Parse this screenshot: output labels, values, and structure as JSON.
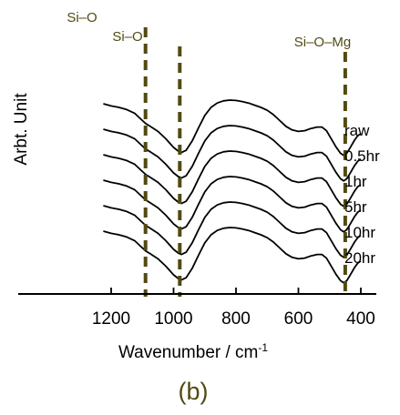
{
  "chart_data": {
    "type": "line",
    "title": "",
    "xlabel": "Wavenumber / cm",
    "xlabel_superscript": "-1",
    "ylabel": "Arbt. Unit",
    "xlim": [
      1200,
      400
    ],
    "x_reversed": true,
    "y_ticks_shown": false,
    "x_ticks": [
      1200,
      1000,
      800,
      600,
      400
    ],
    "grid": false,
    "panel_label": "(b)",
    "colors": {
      "line": "#000000",
      "annotation": "#524a12",
      "panel_label": "#524a12"
    },
    "annotations": [
      {
        "label": "Si–O",
        "x": 1090
      },
      {
        "label": "Si–O",
        "x": 980
      },
      {
        "label": "Si–O–Mg",
        "x": 450
      }
    ],
    "series": [
      {
        "name": "raw",
        "offset": 5,
        "x": [
          1225,
          1200,
          1175,
          1150,
          1125,
          1100,
          1090,
          1075,
          1050,
          1025,
          1000,
          985,
          975,
          960,
          940,
          920,
          900,
          880,
          860,
          840,
          820,
          800,
          780,
          760,
          740,
          720,
          700,
          680,
          660,
          640,
          620,
          600,
          580,
          560,
          540,
          525,
          510,
          495,
          480,
          465,
          455,
          445,
          435,
          420,
          410,
          400
        ],
        "y": [
          0.95,
          0.92,
          0.9,
          0.87,
          0.82,
          0.72,
          0.68,
          0.64,
          0.57,
          0.47,
          0.35,
          0.3,
          0.28,
          0.31,
          0.44,
          0.62,
          0.79,
          0.9,
          0.96,
          0.99,
          1.0,
          0.995,
          0.98,
          0.96,
          0.93,
          0.9,
          0.86,
          0.8,
          0.72,
          0.64,
          0.59,
          0.57,
          0.58,
          0.61,
          0.63,
          0.63,
          0.58,
          0.47,
          0.36,
          0.27,
          0.24,
          0.27,
          0.34,
          0.45,
          0.51,
          0.54
        ]
      },
      {
        "name": "0.5hr",
        "offset": 4,
        "x": [
          1225,
          1200,
          1175,
          1150,
          1125,
          1100,
          1090,
          1075,
          1050,
          1025,
          1000,
          985,
          975,
          960,
          940,
          920,
          900,
          880,
          860,
          840,
          820,
          800,
          780,
          760,
          740,
          720,
          700,
          680,
          660,
          640,
          620,
          600,
          580,
          560,
          540,
          525,
          510,
          495,
          480,
          465,
          455,
          445,
          435,
          420,
          410,
          400
        ],
        "y": [
          0.95,
          0.92,
          0.9,
          0.87,
          0.82,
          0.72,
          0.68,
          0.64,
          0.57,
          0.47,
          0.35,
          0.3,
          0.28,
          0.31,
          0.44,
          0.62,
          0.79,
          0.9,
          0.96,
          0.99,
          1.0,
          0.995,
          0.98,
          0.96,
          0.93,
          0.9,
          0.86,
          0.8,
          0.72,
          0.64,
          0.59,
          0.57,
          0.58,
          0.61,
          0.63,
          0.63,
          0.58,
          0.47,
          0.36,
          0.27,
          0.24,
          0.27,
          0.34,
          0.45,
          0.51,
          0.54
        ]
      },
      {
        "name": "1hr",
        "offset": 3,
        "x": [
          1225,
          1200,
          1175,
          1150,
          1125,
          1100,
          1090,
          1075,
          1050,
          1025,
          1000,
          985,
          975,
          960,
          940,
          920,
          900,
          880,
          860,
          840,
          820,
          800,
          780,
          760,
          740,
          720,
          700,
          680,
          660,
          640,
          620,
          600,
          580,
          560,
          540,
          525,
          510,
          495,
          480,
          465,
          455,
          445,
          435,
          420,
          410,
          400
        ],
        "y": [
          0.95,
          0.92,
          0.9,
          0.87,
          0.82,
          0.72,
          0.68,
          0.64,
          0.57,
          0.47,
          0.35,
          0.3,
          0.28,
          0.31,
          0.44,
          0.62,
          0.79,
          0.9,
          0.96,
          0.99,
          1.0,
          0.995,
          0.98,
          0.96,
          0.93,
          0.9,
          0.86,
          0.8,
          0.72,
          0.64,
          0.59,
          0.57,
          0.58,
          0.61,
          0.63,
          0.63,
          0.58,
          0.47,
          0.36,
          0.27,
          0.24,
          0.27,
          0.34,
          0.45,
          0.51,
          0.54
        ]
      },
      {
        "name": "5hr",
        "offset": 2,
        "x": [
          1225,
          1200,
          1175,
          1150,
          1125,
          1100,
          1090,
          1075,
          1050,
          1025,
          1000,
          985,
          975,
          960,
          940,
          920,
          900,
          880,
          860,
          840,
          820,
          800,
          780,
          760,
          740,
          720,
          700,
          680,
          660,
          640,
          620,
          600,
          580,
          560,
          540,
          525,
          510,
          495,
          480,
          465,
          455,
          445,
          435,
          420,
          410,
          400
        ],
        "y": [
          0.95,
          0.92,
          0.9,
          0.87,
          0.82,
          0.72,
          0.68,
          0.64,
          0.57,
          0.47,
          0.35,
          0.3,
          0.28,
          0.31,
          0.44,
          0.62,
          0.79,
          0.9,
          0.96,
          0.99,
          1.0,
          0.995,
          0.98,
          0.96,
          0.93,
          0.9,
          0.86,
          0.8,
          0.72,
          0.64,
          0.59,
          0.57,
          0.58,
          0.61,
          0.63,
          0.63,
          0.58,
          0.47,
          0.36,
          0.27,
          0.24,
          0.27,
          0.34,
          0.45,
          0.51,
          0.54
        ]
      },
      {
        "name": "10hr",
        "offset": 1,
        "x": [
          1225,
          1200,
          1175,
          1150,
          1125,
          1100,
          1090,
          1075,
          1050,
          1025,
          1000,
          985,
          975,
          960,
          940,
          920,
          900,
          880,
          860,
          840,
          820,
          800,
          780,
          760,
          740,
          720,
          700,
          680,
          660,
          640,
          620,
          600,
          580,
          560,
          540,
          525,
          510,
          495,
          480,
          465,
          455,
          445,
          435,
          420,
          410,
          400
        ],
        "y": [
          0.95,
          0.92,
          0.9,
          0.87,
          0.82,
          0.72,
          0.68,
          0.64,
          0.57,
          0.47,
          0.35,
          0.3,
          0.28,
          0.31,
          0.44,
          0.62,
          0.79,
          0.9,
          0.96,
          0.99,
          1.0,
          0.995,
          0.98,
          0.96,
          0.93,
          0.9,
          0.86,
          0.8,
          0.72,
          0.64,
          0.59,
          0.57,
          0.58,
          0.61,
          0.63,
          0.63,
          0.58,
          0.47,
          0.36,
          0.27,
          0.24,
          0.27,
          0.34,
          0.45,
          0.51,
          0.54
        ]
      },
      {
        "name": "20hr",
        "offset": 0,
        "x": [
          1225,
          1200,
          1175,
          1150,
          1125,
          1100,
          1090,
          1075,
          1050,
          1025,
          1000,
          985,
          975,
          960,
          940,
          920,
          900,
          880,
          860,
          840,
          820,
          800,
          780,
          760,
          740,
          720,
          700,
          680,
          660,
          640,
          620,
          600,
          580,
          560,
          540,
          525,
          510,
          495,
          480,
          465,
          455,
          445,
          435,
          420,
          410,
          400
        ],
        "y": [
          0.95,
          0.92,
          0.9,
          0.87,
          0.82,
          0.72,
          0.68,
          0.64,
          0.57,
          0.47,
          0.35,
          0.3,
          0.28,
          0.31,
          0.44,
          0.62,
          0.79,
          0.9,
          0.96,
          0.99,
          1.0,
          0.995,
          0.98,
          0.96,
          0.93,
          0.9,
          0.86,
          0.8,
          0.72,
          0.64,
          0.59,
          0.57,
          0.58,
          0.61,
          0.63,
          0.63,
          0.58,
          0.47,
          0.36,
          0.27,
          0.24,
          0.27,
          0.34,
          0.45,
          0.51,
          0.54
        ]
      }
    ]
  }
}
